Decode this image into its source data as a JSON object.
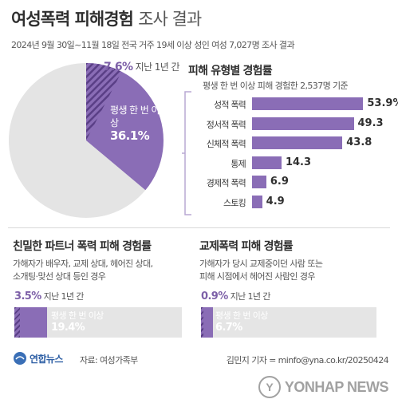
{
  "header": {
    "title_main": "여성폭력 피해경험",
    "title_sub": "조사 결과",
    "subtitle": "2024년 9월 30일~11월 18일 전국 거주 19세 이상 성인 여성 7,027명 조사 결과"
  },
  "chart_data": [
    {
      "type": "pie",
      "slices": [
        {
          "label": "평생 한 번 이상",
          "value": 36.1
        },
        {
          "label": "지난 1년 간",
          "value": 7.6
        }
      ],
      "pct_unit": "%",
      "colors": {
        "lifetime": "#8a6db6",
        "recent_hatch": "#5a3f86",
        "rest": "#e4e4e4"
      }
    },
    {
      "type": "bar",
      "title": "피해 유형별 경험률",
      "subtitle": "평생 한 번 이상 피해 경험한 2,537명 기준",
      "categories": [
        "성적 폭력",
        "정서적 폭력",
        "신체적 폭력",
        "통제",
        "경제적 폭력",
        "스토킹"
      ],
      "values": [
        53.9,
        49.3,
        43.8,
        14.3,
        6.9,
        4.9
      ],
      "value_labels": [
        "53.9%",
        "49.3",
        "43.8",
        "14.3",
        "6.9",
        "4.9"
      ],
      "xlim": [
        0,
        58
      ]
    },
    {
      "type": "bar",
      "title": "친밀한 파트너 폭력 피해 경험률",
      "description": [
        "가해자가 배우자, 교제 상대, 헤어진 상대,",
        "소개팅·맞선 상대 등인 경우"
      ],
      "recent": {
        "value": 3.5,
        "value_label": "3.5%",
        "label": "지난 1년 간"
      },
      "lifetime": {
        "value": 19.4,
        "value_label": "19.4%",
        "label": "평생 한 번 이상"
      },
      "xlim": [
        0,
        100
      ]
    },
    {
      "type": "bar",
      "title": "교제폭력 피해 경험률",
      "description": [
        "가해자가 당시 교제중이던 사람 또는",
        "피해 시점에서 헤어진 사람인 경우"
      ],
      "recent": {
        "value": 0.9,
        "value_label": "0.9%",
        "label": "지난 1년 간"
      },
      "lifetime": {
        "value": 6.7,
        "value_label": "6.7%",
        "label": "평생 한 번 이상"
      },
      "xlim": [
        0,
        100
      ]
    }
  ],
  "footer": {
    "logo_text": "연합뉴스",
    "source": "자료: 여성가족부",
    "credit": "김민지 기자 = minfo@yna.co.kr/20250424",
    "watermark": "YONHAP NEWS"
  }
}
